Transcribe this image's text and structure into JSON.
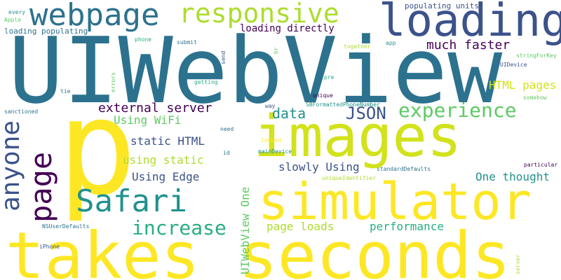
{
  "colors": {
    "background": "#ffffff",
    "palette": [
      "#440154",
      "#3b528b",
      "#2c728e",
      "#21918c",
      "#28ae80",
      "#5ec962",
      "#addc30",
      "#fde725"
    ]
  },
  "words": [
    "p",
    "UIWebView",
    "takes seconds",
    "images",
    "simulator",
    "loading",
    "webpage",
    "responsive",
    "page",
    "anyone",
    "Safari",
    "increase",
    "experience",
    "JSON",
    "data",
    "external server",
    "much faster",
    "HTML pages",
    "page loads",
    "performance",
    "Using WiFi",
    "static HTML",
    "using static",
    "Using Edge",
    "slowly Using",
    "One thought",
    "UIWebView One",
    "loading directly",
    "populating units",
    "loading populating",
    "every",
    "Apple",
    "phone",
    "submit",
    "send",
    "br",
    "together",
    "app",
    "stringForKey",
    "UIDevice",
    "getting",
    "errors",
    "tie",
    "way",
    "unique",
    "pre",
    "SBFormattedPhoneNumber",
    "somehow",
    "sanctioned",
    "need",
    "looked",
    "mainDevice",
    "id",
    "standardDefaults",
    "uniqueIdentifier",
    "particular",
    "NSUserDefaults",
    "iPhone",
    "server"
  ]
}
